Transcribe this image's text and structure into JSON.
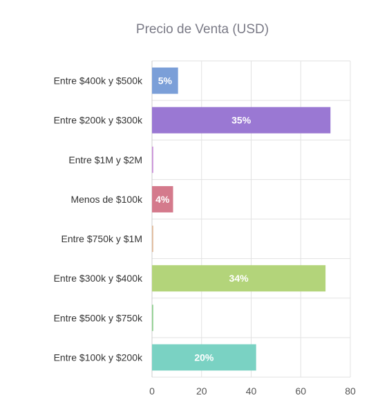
{
  "chart_data": {
    "type": "bar",
    "orientation": "horizontal",
    "title": "Precio de Venta (USD)",
    "xlabel": "",
    "ylabel": "",
    "xlim": [
      0,
      80
    ],
    "x_ticks": [
      0,
      20,
      40,
      60,
      80
    ],
    "grid": true,
    "categories": [
      "Entre $400k y $500k",
      "Entre $200k y $300k",
      "Entre $1M y $2M",
      "Menos de $100k",
      "Entre $750k y $1M",
      "Entre $300k y $400k",
      "Entre $500k y $750k",
      "Entre $100k y $200k"
    ],
    "values": [
      10.5,
      72,
      0.5,
      8.5,
      0.5,
      70,
      0.5,
      42
    ],
    "bar_labels": [
      "5%",
      "35%",
      "",
      "4%",
      "",
      "34%",
      "",
      "20%"
    ],
    "colors": [
      "#7b9fd8",
      "#9a78d3",
      "#c98fd8",
      "#d47a8c",
      "#e0b99a",
      "#b3d47a",
      "#8fcf8f",
      "#7ad2c3"
    ]
  }
}
